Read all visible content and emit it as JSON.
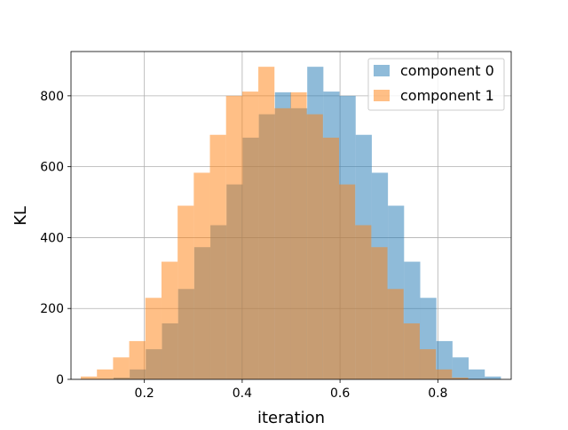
{
  "chart_data": {
    "type": "bar",
    "xlabel": "iteration",
    "ylabel": "KL",
    "xlim": [
      0.05,
      0.95
    ],
    "ylim": [
      0,
      925
    ],
    "x_ticks": [
      0.2,
      0.4,
      0.6,
      0.8
    ],
    "x_tick_labels": [
      "0.2",
      "0.4",
      "0.6",
      "0.8"
    ],
    "y_ticks": [
      0,
      200,
      400,
      600,
      800
    ],
    "y_tick_labels": [
      "0",
      "200",
      "400",
      "600",
      "800"
    ],
    "grid": true,
    "legend_position": "top-right",
    "bin_width": 0.033,
    "series": [
      {
        "name": "component 0",
        "color": "#1f77b4",
        "bins": [
          {
            "x0": 0.137,
            "x1": 0.17,
            "value": 5
          },
          {
            "x0": 0.17,
            "x1": 0.203,
            "value": 28
          },
          {
            "x0": 0.203,
            "x1": 0.236,
            "value": 85
          },
          {
            "x0": 0.236,
            "x1": 0.269,
            "value": 158
          },
          {
            "x0": 0.269,
            "x1": 0.302,
            "value": 255
          },
          {
            "x0": 0.302,
            "x1": 0.335,
            "value": 373
          },
          {
            "x0": 0.335,
            "x1": 0.368,
            "value": 435
          },
          {
            "x0": 0.368,
            "x1": 0.401,
            "value": 550
          },
          {
            "x0": 0.401,
            "x1": 0.434,
            "value": 682
          },
          {
            "x0": 0.434,
            "x1": 0.467,
            "value": 748
          },
          {
            "x0": 0.467,
            "x1": 0.5,
            "value": 810
          },
          {
            "x0": 0.5,
            "x1": 0.533,
            "value": 765
          },
          {
            "x0": 0.533,
            "x1": 0.566,
            "value": 882
          },
          {
            "x0": 0.566,
            "x1": 0.599,
            "value": 812
          },
          {
            "x0": 0.599,
            "x1": 0.632,
            "value": 800
          },
          {
            "x0": 0.632,
            "x1": 0.665,
            "value": 690
          },
          {
            "x0": 0.665,
            "x1": 0.698,
            "value": 583
          },
          {
            "x0": 0.698,
            "x1": 0.731,
            "value": 490
          },
          {
            "x0": 0.731,
            "x1": 0.764,
            "value": 332
          },
          {
            "x0": 0.764,
            "x1": 0.797,
            "value": 230
          },
          {
            "x0": 0.797,
            "x1": 0.83,
            "value": 108
          },
          {
            "x0": 0.83,
            "x1": 0.863,
            "value": 62
          },
          {
            "x0": 0.863,
            "x1": 0.896,
            "value": 28
          },
          {
            "x0": 0.896,
            "x1": 0.929,
            "value": 8
          }
        ]
      },
      {
        "name": "component 1",
        "color": "#ff7f0e",
        "bins": [
          {
            "x0": 0.07,
            "x1": 0.103,
            "value": 8
          },
          {
            "x0": 0.103,
            "x1": 0.136,
            "value": 28
          },
          {
            "x0": 0.136,
            "x1": 0.169,
            "value": 62
          },
          {
            "x0": 0.169,
            "x1": 0.202,
            "value": 108
          },
          {
            "x0": 0.202,
            "x1": 0.235,
            "value": 230
          },
          {
            "x0": 0.235,
            "x1": 0.268,
            "value": 332
          },
          {
            "x0": 0.268,
            "x1": 0.301,
            "value": 490
          },
          {
            "x0": 0.301,
            "x1": 0.334,
            "value": 583
          },
          {
            "x0": 0.334,
            "x1": 0.367,
            "value": 690
          },
          {
            "x0": 0.367,
            "x1": 0.4,
            "value": 800
          },
          {
            "x0": 0.4,
            "x1": 0.433,
            "value": 812
          },
          {
            "x0": 0.433,
            "x1": 0.466,
            "value": 882
          },
          {
            "x0": 0.466,
            "x1": 0.499,
            "value": 765
          },
          {
            "x0": 0.499,
            "x1": 0.532,
            "value": 810
          },
          {
            "x0": 0.532,
            "x1": 0.565,
            "value": 748
          },
          {
            "x0": 0.565,
            "x1": 0.598,
            "value": 682
          },
          {
            "x0": 0.598,
            "x1": 0.631,
            "value": 550
          },
          {
            "x0": 0.631,
            "x1": 0.664,
            "value": 435
          },
          {
            "x0": 0.664,
            "x1": 0.697,
            "value": 373
          },
          {
            "x0": 0.697,
            "x1": 0.73,
            "value": 255
          },
          {
            "x0": 0.73,
            "x1": 0.763,
            "value": 158
          },
          {
            "x0": 0.763,
            "x1": 0.796,
            "value": 85
          },
          {
            "x0": 0.796,
            "x1": 0.829,
            "value": 28
          },
          {
            "x0": 0.829,
            "x1": 0.862,
            "value": 5
          }
        ]
      }
    ]
  }
}
